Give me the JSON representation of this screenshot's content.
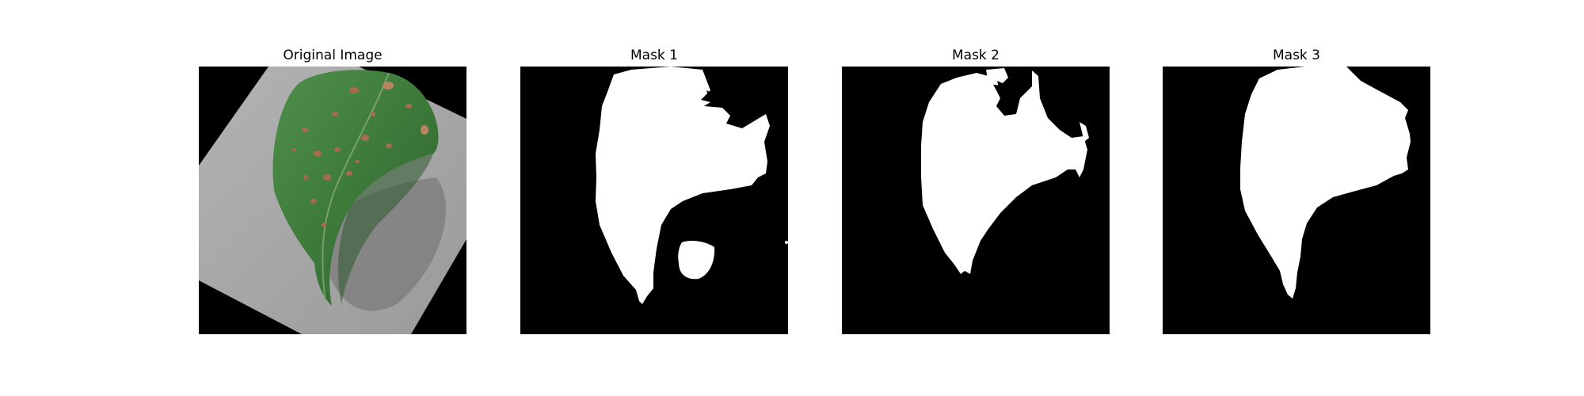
{
  "figure": {
    "panels": [
      {
        "title": "Original Image",
        "content": "leaf-photo"
      },
      {
        "title": "Mask 1",
        "content": "binary-mask"
      },
      {
        "title": "Mask 2",
        "content": "binary-mask"
      },
      {
        "title": "Mask 3",
        "content": "binary-mask"
      }
    ]
  },
  "colors": {
    "background": "#ffffff",
    "mask_background": "#000000",
    "mask_foreground": "#ffffff",
    "leaf_green": "#3f7a3c",
    "paper_gray": "#a6a6a6",
    "spot_brown": "#a86c4c"
  }
}
